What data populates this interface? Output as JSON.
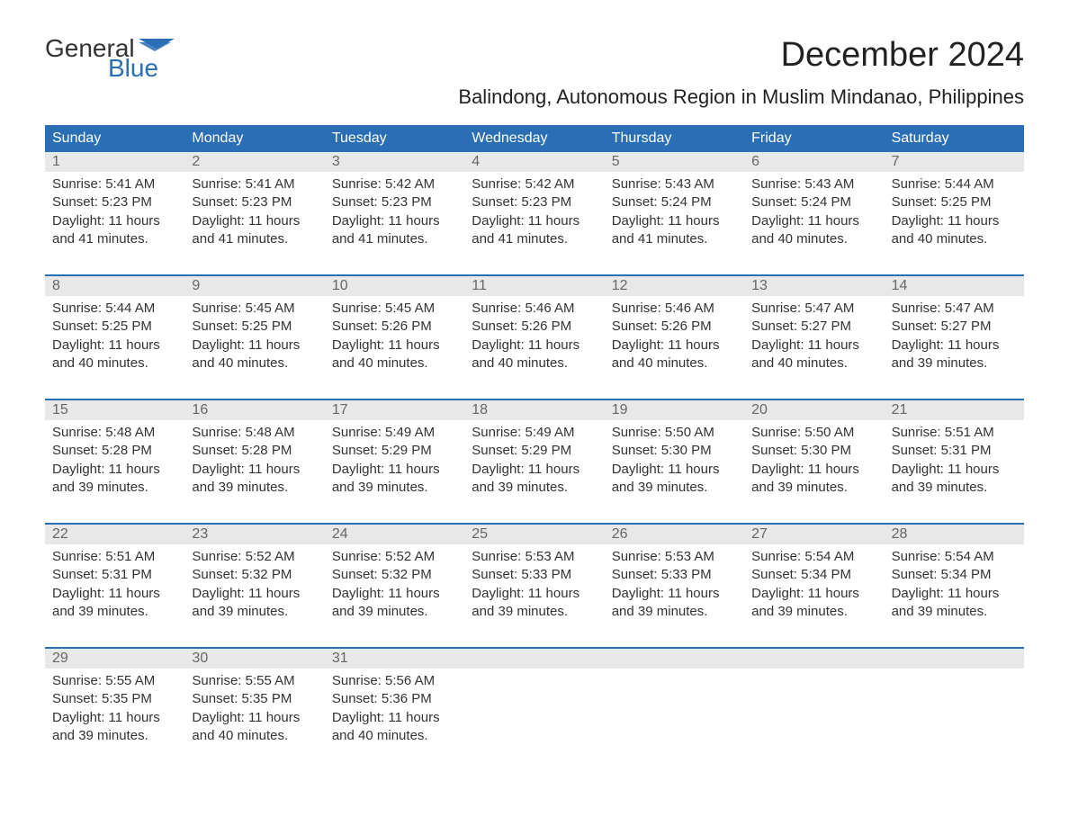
{
  "logo": {
    "text_general": "General",
    "text_blue": "Blue",
    "flag_color": "#2a6fb5"
  },
  "title": "December 2024",
  "location": "Balindong, Autonomous Region in Muslim Mindanao, Philippines",
  "colors": {
    "header_bg": "#2a6fb5",
    "header_text": "#ffffff",
    "daynum_bg": "#e8e8e8",
    "daynum_text": "#666666",
    "border": "#2a6fb5",
    "body_text": "#333333"
  },
  "weekdays": [
    "Sunday",
    "Monday",
    "Tuesday",
    "Wednesday",
    "Thursday",
    "Friday",
    "Saturday"
  ],
  "weeks": [
    [
      {
        "n": "1",
        "sr": "Sunrise: 5:41 AM",
        "ss": "Sunset: 5:23 PM",
        "d1": "Daylight: 11 hours",
        "d2": "and 41 minutes."
      },
      {
        "n": "2",
        "sr": "Sunrise: 5:41 AM",
        "ss": "Sunset: 5:23 PM",
        "d1": "Daylight: 11 hours",
        "d2": "and 41 minutes."
      },
      {
        "n": "3",
        "sr": "Sunrise: 5:42 AM",
        "ss": "Sunset: 5:23 PM",
        "d1": "Daylight: 11 hours",
        "d2": "and 41 minutes."
      },
      {
        "n": "4",
        "sr": "Sunrise: 5:42 AM",
        "ss": "Sunset: 5:23 PM",
        "d1": "Daylight: 11 hours",
        "d2": "and 41 minutes."
      },
      {
        "n": "5",
        "sr": "Sunrise: 5:43 AM",
        "ss": "Sunset: 5:24 PM",
        "d1": "Daylight: 11 hours",
        "d2": "and 41 minutes."
      },
      {
        "n": "6",
        "sr": "Sunrise: 5:43 AM",
        "ss": "Sunset: 5:24 PM",
        "d1": "Daylight: 11 hours",
        "d2": "and 40 minutes."
      },
      {
        "n": "7",
        "sr": "Sunrise: 5:44 AM",
        "ss": "Sunset: 5:25 PM",
        "d1": "Daylight: 11 hours",
        "d2": "and 40 minutes."
      }
    ],
    [
      {
        "n": "8",
        "sr": "Sunrise: 5:44 AM",
        "ss": "Sunset: 5:25 PM",
        "d1": "Daylight: 11 hours",
        "d2": "and 40 minutes."
      },
      {
        "n": "9",
        "sr": "Sunrise: 5:45 AM",
        "ss": "Sunset: 5:25 PM",
        "d1": "Daylight: 11 hours",
        "d2": "and 40 minutes."
      },
      {
        "n": "10",
        "sr": "Sunrise: 5:45 AM",
        "ss": "Sunset: 5:26 PM",
        "d1": "Daylight: 11 hours",
        "d2": "and 40 minutes."
      },
      {
        "n": "11",
        "sr": "Sunrise: 5:46 AM",
        "ss": "Sunset: 5:26 PM",
        "d1": "Daylight: 11 hours",
        "d2": "and 40 minutes."
      },
      {
        "n": "12",
        "sr": "Sunrise: 5:46 AM",
        "ss": "Sunset: 5:26 PM",
        "d1": "Daylight: 11 hours",
        "d2": "and 40 minutes."
      },
      {
        "n": "13",
        "sr": "Sunrise: 5:47 AM",
        "ss": "Sunset: 5:27 PM",
        "d1": "Daylight: 11 hours",
        "d2": "and 40 minutes."
      },
      {
        "n": "14",
        "sr": "Sunrise: 5:47 AM",
        "ss": "Sunset: 5:27 PM",
        "d1": "Daylight: 11 hours",
        "d2": "and 39 minutes."
      }
    ],
    [
      {
        "n": "15",
        "sr": "Sunrise: 5:48 AM",
        "ss": "Sunset: 5:28 PM",
        "d1": "Daylight: 11 hours",
        "d2": "and 39 minutes."
      },
      {
        "n": "16",
        "sr": "Sunrise: 5:48 AM",
        "ss": "Sunset: 5:28 PM",
        "d1": "Daylight: 11 hours",
        "d2": "and 39 minutes."
      },
      {
        "n": "17",
        "sr": "Sunrise: 5:49 AM",
        "ss": "Sunset: 5:29 PM",
        "d1": "Daylight: 11 hours",
        "d2": "and 39 minutes."
      },
      {
        "n": "18",
        "sr": "Sunrise: 5:49 AM",
        "ss": "Sunset: 5:29 PM",
        "d1": "Daylight: 11 hours",
        "d2": "and 39 minutes."
      },
      {
        "n": "19",
        "sr": "Sunrise: 5:50 AM",
        "ss": "Sunset: 5:30 PM",
        "d1": "Daylight: 11 hours",
        "d2": "and 39 minutes."
      },
      {
        "n": "20",
        "sr": "Sunrise: 5:50 AM",
        "ss": "Sunset: 5:30 PM",
        "d1": "Daylight: 11 hours",
        "d2": "and 39 minutes."
      },
      {
        "n": "21",
        "sr": "Sunrise: 5:51 AM",
        "ss": "Sunset: 5:31 PM",
        "d1": "Daylight: 11 hours",
        "d2": "and 39 minutes."
      }
    ],
    [
      {
        "n": "22",
        "sr": "Sunrise: 5:51 AM",
        "ss": "Sunset: 5:31 PM",
        "d1": "Daylight: 11 hours",
        "d2": "and 39 minutes."
      },
      {
        "n": "23",
        "sr": "Sunrise: 5:52 AM",
        "ss": "Sunset: 5:32 PM",
        "d1": "Daylight: 11 hours",
        "d2": "and 39 minutes."
      },
      {
        "n": "24",
        "sr": "Sunrise: 5:52 AM",
        "ss": "Sunset: 5:32 PM",
        "d1": "Daylight: 11 hours",
        "d2": "and 39 minutes."
      },
      {
        "n": "25",
        "sr": "Sunrise: 5:53 AM",
        "ss": "Sunset: 5:33 PM",
        "d1": "Daylight: 11 hours",
        "d2": "and 39 minutes."
      },
      {
        "n": "26",
        "sr": "Sunrise: 5:53 AM",
        "ss": "Sunset: 5:33 PM",
        "d1": "Daylight: 11 hours",
        "d2": "and 39 minutes."
      },
      {
        "n": "27",
        "sr": "Sunrise: 5:54 AM",
        "ss": "Sunset: 5:34 PM",
        "d1": "Daylight: 11 hours",
        "d2": "and 39 minutes."
      },
      {
        "n": "28",
        "sr": "Sunrise: 5:54 AM",
        "ss": "Sunset: 5:34 PM",
        "d1": "Daylight: 11 hours",
        "d2": "and 39 minutes."
      }
    ],
    [
      {
        "n": "29",
        "sr": "Sunrise: 5:55 AM",
        "ss": "Sunset: 5:35 PM",
        "d1": "Daylight: 11 hours",
        "d2": "and 39 minutes."
      },
      {
        "n": "30",
        "sr": "Sunrise: 5:55 AM",
        "ss": "Sunset: 5:35 PM",
        "d1": "Daylight: 11 hours",
        "d2": "and 40 minutes."
      },
      {
        "n": "31",
        "sr": "Sunrise: 5:56 AM",
        "ss": "Sunset: 5:36 PM",
        "d1": "Daylight: 11 hours",
        "d2": "and 40 minutes."
      },
      null,
      null,
      null,
      null
    ]
  ]
}
